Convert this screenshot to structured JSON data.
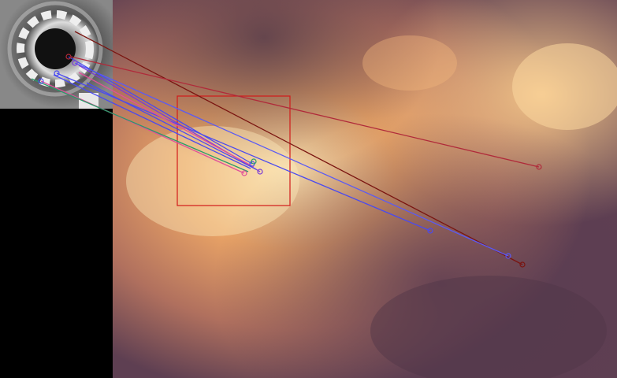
{
  "image": {
    "description_kind": "feature-match visualization",
    "panels": [
      "query-thumbnail",
      "sky-photo"
    ]
  },
  "colors": {
    "left_bg": "#000000",
    "sky_light": "#f5c98a",
    "sky_mid": "#d98a57",
    "sky_dark": "#6b4a5a",
    "box": "#d21a1a",
    "line_blue": "#4a4af0",
    "line_violet": "#7a3bd6",
    "line_red": "#b02a3a",
    "line_darkred": "#7a1410",
    "line_green": "#2a9a6a",
    "line_pink": "#e0509a",
    "line_olive": "#8a7a3a"
  }
}
